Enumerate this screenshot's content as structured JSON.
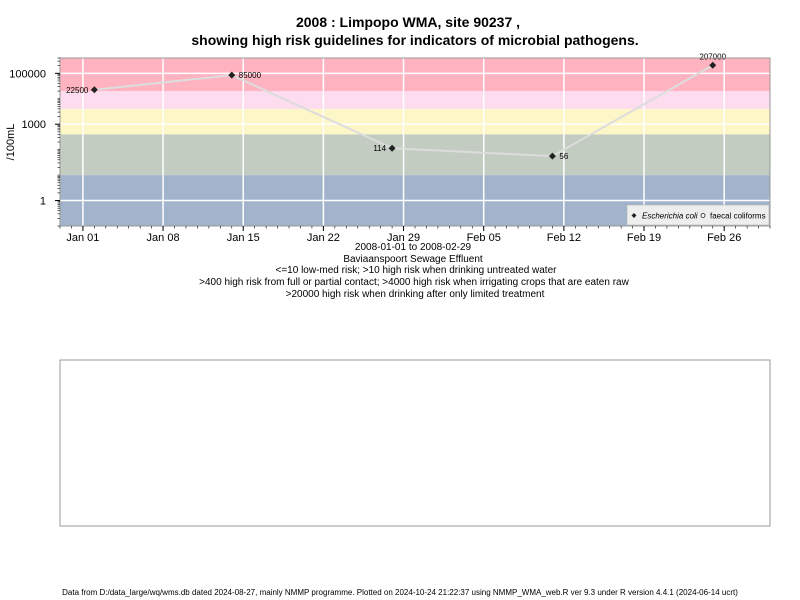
{
  "chart_data": {
    "type": "line",
    "title_line1": "2008 : Limpopo WMA, site 90237 ,",
    "title_line2": "showing high risk guidelines for indicators of microbial pathogens.",
    "ylabel": "/100mL",
    "y_scale": "log10",
    "ylim": [
      0.1,
      400000
    ],
    "xlim": [
      "2007-12-30",
      "2008-03-01"
    ],
    "x_ticks": [
      {
        "date": "2008-01-01",
        "label": "Jan 01"
      },
      {
        "date": "2008-01-08",
        "label": "Jan 08"
      },
      {
        "date": "2008-01-15",
        "label": "Jan 15"
      },
      {
        "date": "2008-01-22",
        "label": "Jan 22"
      },
      {
        "date": "2008-01-29",
        "label": "Jan 29"
      },
      {
        "date": "2008-02-05",
        "label": "Feb 05"
      },
      {
        "date": "2008-02-12",
        "label": "Feb 12"
      },
      {
        "date": "2008-02-19",
        "label": "Feb 19"
      },
      {
        "date": "2008-02-26",
        "label": "Feb 26"
      }
    ],
    "y_ticks": [
      {
        "value": 1,
        "label": "1"
      },
      {
        "value": 1000,
        "label": "1000"
      },
      {
        "value": 100000,
        "label": "100000"
      }
    ],
    "risk_bands": [
      {
        "from": 0.1,
        "to": 10,
        "color": "#a2b4cc"
      },
      {
        "from": 10,
        "to": 400,
        "color": "#c2ccc1"
      },
      {
        "from": 400,
        "to": 4000,
        "color": "#fdf6c6"
      },
      {
        "from": 4000,
        "to": 20000,
        "color": "#fddcf0"
      },
      {
        "from": 20000,
        "to": 400000,
        "color": "#ffb3c1"
      }
    ],
    "series": [
      {
        "name": "Escherichia coli",
        "color": "#222222",
        "line_color": "#dcdcdc",
        "marker": "diamond",
        "points": [
          {
            "date": "2008-01-02",
            "value": 22500,
            "label": "22500",
            "label_side": "left"
          },
          {
            "date": "2008-01-14",
            "value": 85000,
            "label": "85000",
            "label_side": "right"
          },
          {
            "date": "2008-01-28",
            "value": 114,
            "label": "114",
            "label_side": "left"
          },
          {
            "date": "2008-02-11",
            "value": 56,
            "label": "56",
            "label_side": "right"
          },
          {
            "date": "2008-02-25",
            "value": 207000,
            "label": "207000",
            "label_side": "above"
          }
        ]
      },
      {
        "name": "faecal coliforms",
        "color": "#222222",
        "marker": "circle",
        "points": []
      }
    ],
    "legend_position": "bottom-right",
    "grid": true,
    "subtitle_lines": [
      "2008-01-01 to 2008-02-29",
      "Baviaanspoort Sewage Effluent",
      "<=10 low-med risk; >10 high risk when drinking untreated water",
      ">400 high risk from full or partial contact; >4000 high risk when irrigating crops that are eaten raw",
      ">20000 high risk when drinking after only limited treatment"
    ]
  },
  "footer": "Data from D:/data_large/wq/wms.db dated 2024-08-27, mainly NMMP programme. Plotted on 2024-10-24 21:22:37 using NMMP_WMA_web.R ver 9.3 under R version 4.4.1 (2024-06-14 ucrt)"
}
